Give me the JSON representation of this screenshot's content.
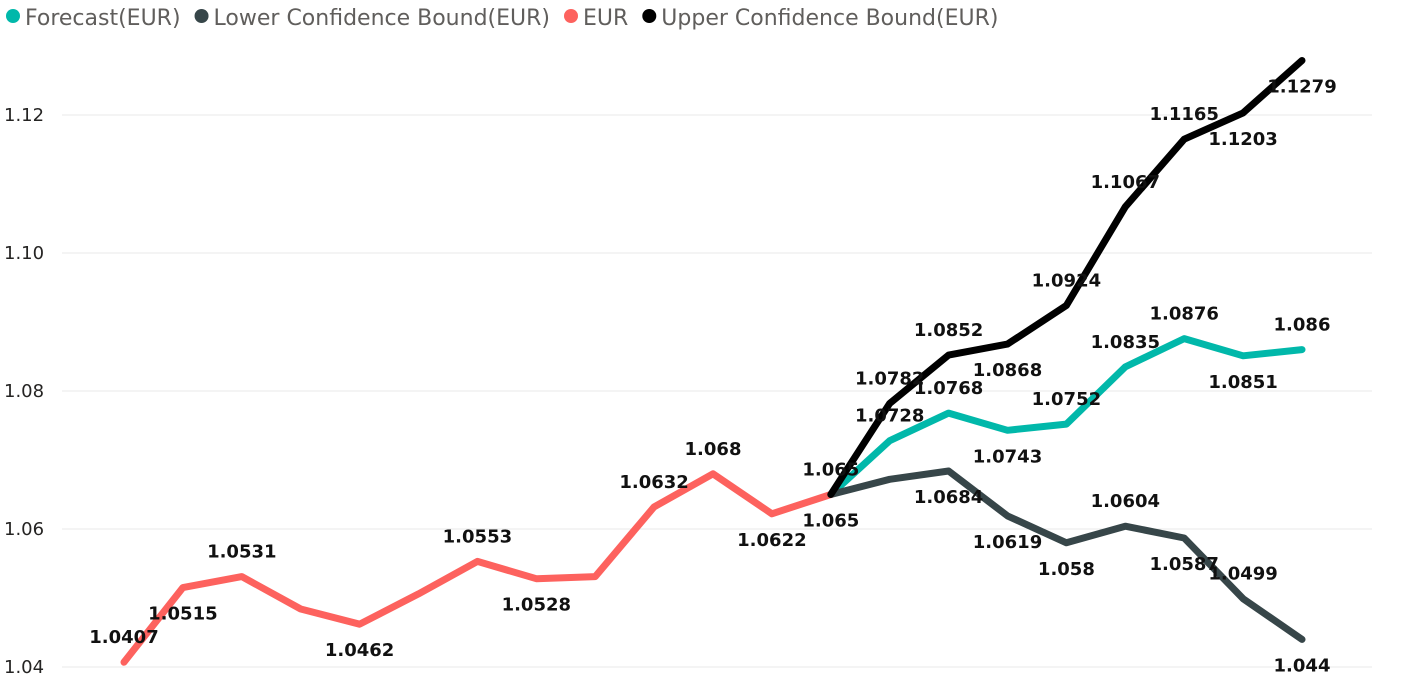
{
  "chart_data": {
    "type": "line",
    "title": "",
    "xlabel": "",
    "ylabel": "",
    "ylim": [
      1.04,
      1.13
    ],
    "y_ticks": [
      "1.04",
      "1.06",
      "1.08",
      "1.10",
      "1.12"
    ],
    "y_tick_values": [
      1.04,
      1.06,
      1.08,
      1.1,
      1.12
    ],
    "grid": true,
    "legend": "top-left",
    "x_count": 21,
    "series": [
      {
        "name": "Forecast(EUR)",
        "color": "#01b8aa",
        "points": [
          {
            "i": 12,
            "y": 1.065
          },
          {
            "i": 13,
            "y": 1.0728
          },
          {
            "i": 14,
            "y": 1.0768
          },
          {
            "i": 15,
            "y": 1.0743
          },
          {
            "i": 16,
            "y": 1.0752
          },
          {
            "i": 17,
            "y": 1.0835
          },
          {
            "i": 18,
            "y": 1.0876
          },
          {
            "i": 19,
            "y": 1.0851
          },
          {
            "i": 20,
            "y": 1.086
          }
        ],
        "labels": [
          {
            "i": 12,
            "text": "1.065",
            "pos": "above"
          },
          {
            "i": 13,
            "text": "1.0728",
            "pos": "above"
          },
          {
            "i": 14,
            "text": "1.0768",
            "pos": "above"
          },
          {
            "i": 15,
            "text": "1.0743",
            "pos": "below"
          },
          {
            "i": 16,
            "text": "1.0752",
            "pos": "above"
          },
          {
            "i": 17,
            "text": "1.0835",
            "pos": "above"
          },
          {
            "i": 18,
            "text": "1.0876",
            "pos": "above"
          },
          {
            "i": 19,
            "text": "1.0851",
            "pos": "below"
          },
          {
            "i": 20,
            "text": "1.086",
            "pos": "above"
          }
        ]
      },
      {
        "name": "Lower Confidence Bound(EUR)",
        "color": "#374649",
        "points": [
          {
            "i": 12,
            "y": 1.065
          },
          {
            "i": 13,
            "y": 1.0672
          },
          {
            "i": 14,
            "y": 1.0684
          },
          {
            "i": 15,
            "y": 1.0619
          },
          {
            "i": 16,
            "y": 1.058
          },
          {
            "i": 17,
            "y": 1.0604
          },
          {
            "i": 18,
            "y": 1.0587
          },
          {
            "i": 19,
            "y": 1.0499
          },
          {
            "i": 20,
            "y": 1.044
          }
        ],
        "labels": [
          {
            "i": 14,
            "text": "1.0684",
            "pos": "below"
          },
          {
            "i": 15,
            "text": "1.0619",
            "pos": "below"
          },
          {
            "i": 16,
            "text": "1.058",
            "pos": "below"
          },
          {
            "i": 17,
            "text": "1.0604",
            "pos": "above"
          },
          {
            "i": 18,
            "text": "1.0587",
            "pos": "below"
          },
          {
            "i": 19,
            "text": "1.0499",
            "pos": "above"
          },
          {
            "i": 20,
            "text": "1.044",
            "pos": "below"
          }
        ]
      },
      {
        "name": "EUR",
        "color": "#fd625e",
        "points": [
          {
            "i": 0,
            "y": 1.0407
          },
          {
            "i": 1,
            "y": 1.0515
          },
          {
            "i": 2,
            "y": 1.0531
          },
          {
            "i": 3,
            "y": 1.0484
          },
          {
            "i": 4,
            "y": 1.0462
          },
          {
            "i": 5,
            "y": 1.0506
          },
          {
            "i": 6,
            "y": 1.0553
          },
          {
            "i": 7,
            "y": 1.0528
          },
          {
            "i": 8,
            "y": 1.0531
          },
          {
            "i": 9,
            "y": 1.0632
          },
          {
            "i": 10,
            "y": 1.068
          },
          {
            "i": 11,
            "y": 1.0622
          },
          {
            "i": 12,
            "y": 1.065
          }
        ],
        "labels": [
          {
            "i": 0,
            "text": "1.0407",
            "pos": "above"
          },
          {
            "i": 1,
            "text": "1.0515",
            "pos": "below"
          },
          {
            "i": 2,
            "text": "1.0531",
            "pos": "above"
          },
          {
            "i": 4,
            "text": "1.0462",
            "pos": "below"
          },
          {
            "i": 6,
            "text": "1.0553",
            "pos": "above"
          },
          {
            "i": 7,
            "text": "1.0528",
            "pos": "below"
          },
          {
            "i": 9,
            "text": "1.0632",
            "pos": "above"
          },
          {
            "i": 10,
            "text": "1.068",
            "pos": "above"
          },
          {
            "i": 11,
            "text": "1.0622",
            "pos": "below"
          },
          {
            "i": 12,
            "text": "1.065",
            "pos": "below"
          }
        ]
      },
      {
        "name": "Upper Confidence Bound(EUR)",
        "color": "#000000",
        "points": [
          {
            "i": 12,
            "y": 1.065
          },
          {
            "i": 13,
            "y": 1.0782
          },
          {
            "i": 14,
            "y": 1.0852
          },
          {
            "i": 15,
            "y": 1.0868
          },
          {
            "i": 16,
            "y": 1.0924
          },
          {
            "i": 17,
            "y": 1.1067
          },
          {
            "i": 18,
            "y": 1.1165
          },
          {
            "i": 19,
            "y": 1.1203
          },
          {
            "i": 20,
            "y": 1.1279
          }
        ],
        "labels": [
          {
            "i": 13,
            "text": "1.0782",
            "pos": "above"
          },
          {
            "i": 14,
            "text": "1.0852",
            "pos": "above"
          },
          {
            "i": 15,
            "text": "1.0868",
            "pos": "below"
          },
          {
            "i": 16,
            "text": "1.0924",
            "pos": "above"
          },
          {
            "i": 17,
            "text": "1.1067",
            "pos": "above"
          },
          {
            "i": 18,
            "text": "1.1165",
            "pos": "above"
          },
          {
            "i": 19,
            "text": "1.1203",
            "pos": "below"
          },
          {
            "i": 20,
            "text": "1.1279",
            "pos": "below"
          }
        ]
      }
    ]
  }
}
